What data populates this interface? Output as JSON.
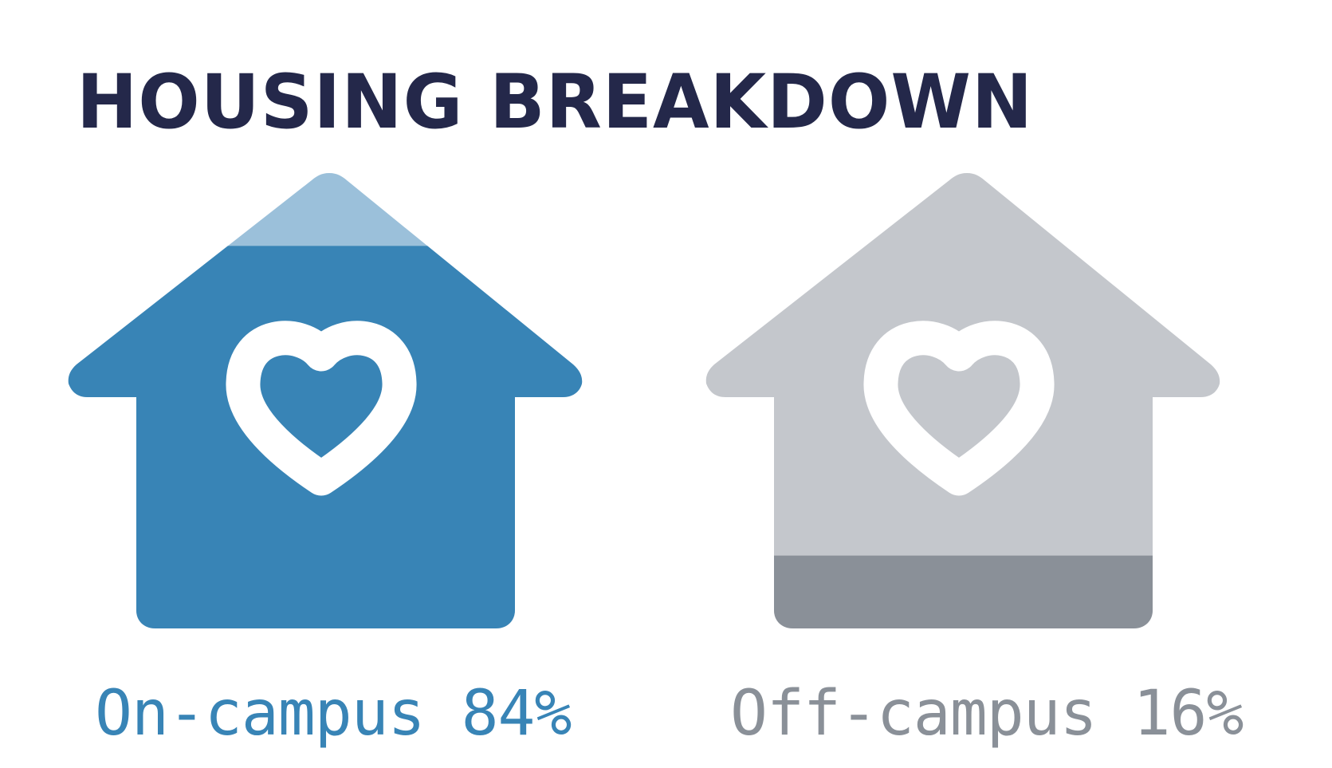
{
  "title": "HOUSING BREAKDOWN",
  "chart_data": {
    "type": "pictogram",
    "title": "HOUSING BREAKDOWN",
    "items": [
      {
        "label": "On-campus 84%",
        "name": "On-campus",
        "value": 84,
        "unit": "%",
        "fill_color": "#3884b6",
        "remainder_color": "#9bc0da",
        "label_color": "#3884b6"
      },
      {
        "label": "Off-campus 16%",
        "name": "Off-campus",
        "value": 16,
        "unit": "%",
        "fill_color": "#8a9098",
        "remainder_color": "#c4c7cc",
        "label_color": "#8a9098"
      }
    ],
    "icon": "house-with-heart-icon"
  }
}
